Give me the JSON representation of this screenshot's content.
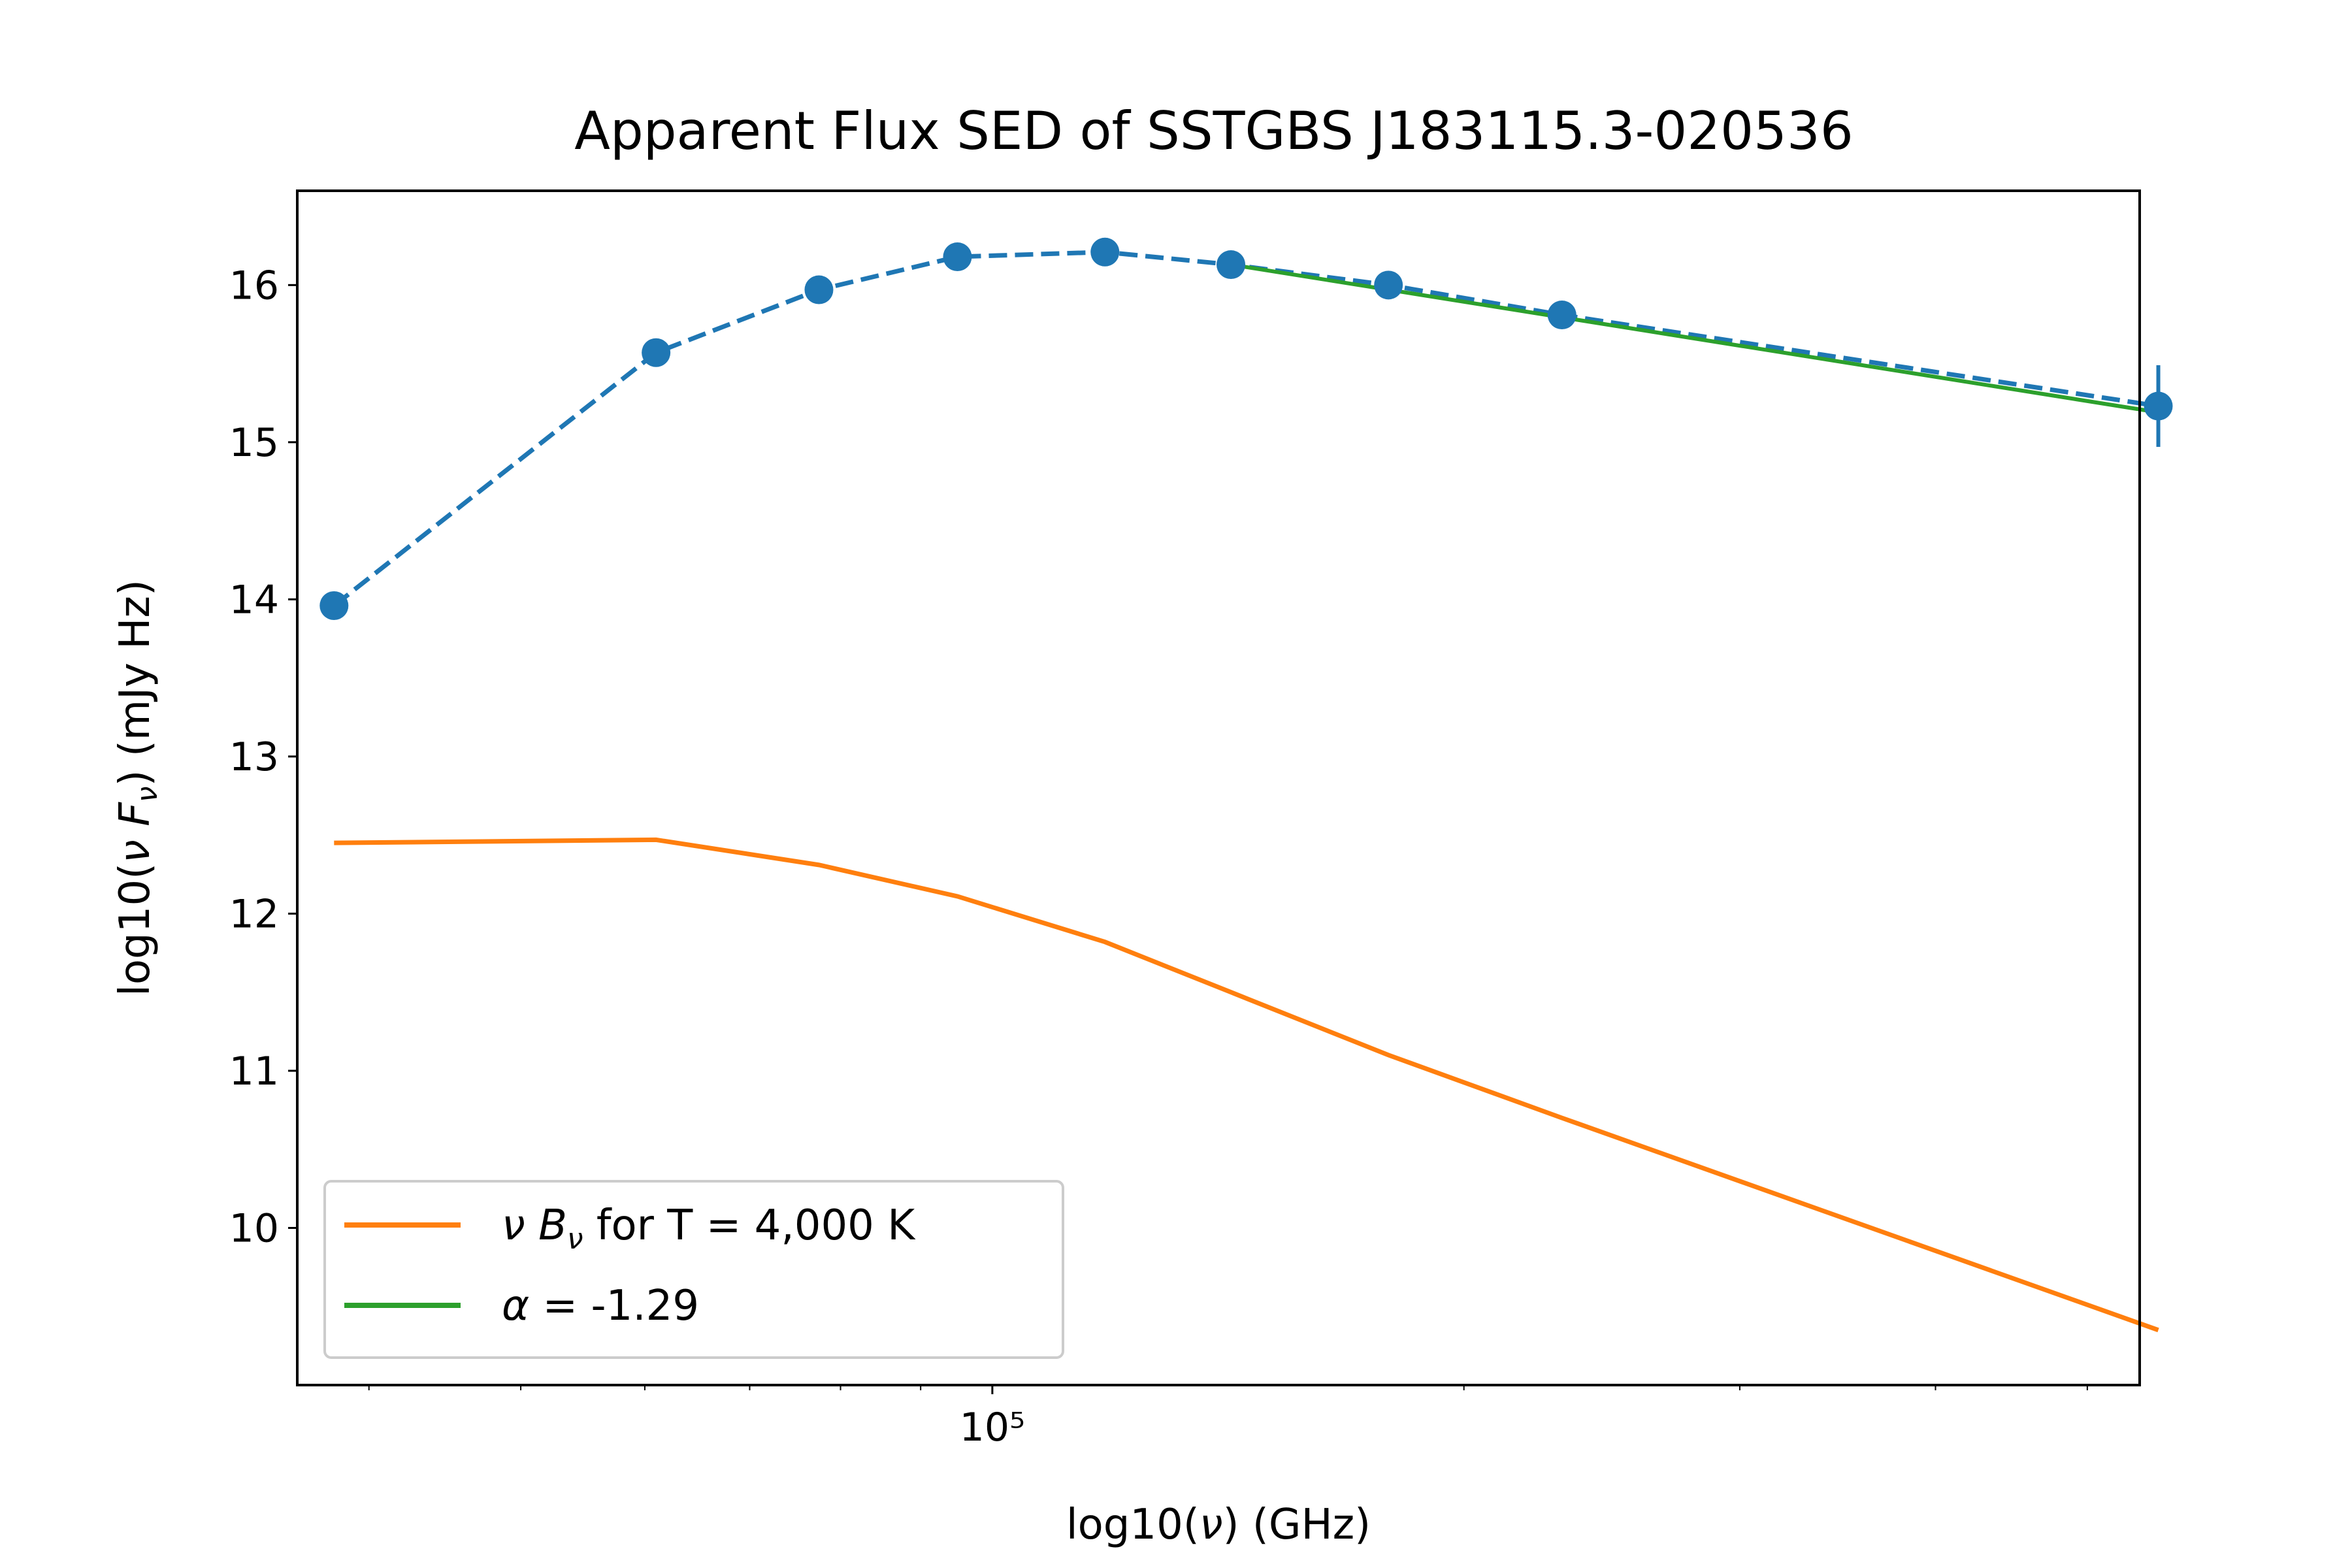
{
  "chart_data": {
    "type": "line",
    "title": "Apparent Flux SED of SSTGBS J183115.3-020536",
    "xlabel": "log10(ν) (GHz)",
    "ylabel": "log10(ν F_ν) (mJy Hz)",
    "x_scale": "log",
    "xlim": [
      36000,
      540000
    ],
    "ylim": [
      9.0,
      16.6
    ],
    "x_tick_major": {
      "value": 100000,
      "label": "10⁵"
    },
    "x_tick_minor": [
      40000,
      50000,
      60000,
      70000,
      80000,
      90000,
      200000,
      300000,
      400000,
      500000
    ],
    "y_ticks": [
      10,
      11,
      12,
      13,
      14,
      15,
      16
    ],
    "y_tick_labels": [
      "10",
      "11",
      "12",
      "13",
      "14",
      "15",
      "16"
    ],
    "grid": false,
    "legend_position": "lower-left",
    "series": [
      {
        "style": "dashed line with circle markers",
        "color": "#1f77b4",
        "x": [
          38000,
          61000,
          77500,
          95000,
          118000,
          142000,
          179000,
          231000,
          555000
        ],
        "y": [
          13.96,
          15.57,
          15.97,
          16.18,
          16.21,
          16.13,
          16.0,
          15.81,
          15.23
        ],
        "yerr": [
          0,
          0,
          0,
          0,
          0,
          0,
          0,
          0,
          0.26
        ]
      },
      {
        "name": "ν B_ν for T = 4,000 K",
        "color": "#ff7f0e",
        "x": [
          38000,
          61000,
          77500,
          95000,
          118000,
          142000,
          179000,
          231000,
          555000
        ],
        "y": [
          12.45,
          12.47,
          12.31,
          12.11,
          11.82,
          11.5,
          11.1,
          10.7,
          9.35
        ]
      },
      {
        "name": "α = -1.29",
        "color": "#2ca02c",
        "x": [
          142000,
          555000
        ],
        "y": [
          16.13,
          15.19
        ]
      }
    ],
    "legend": [
      {
        "label_symbol": "ν B",
        "label_sub": "ν",
        "label_rest": " for T = 4,000 K",
        "color": "#ff7f0e"
      },
      {
        "label_symbol": "α",
        "label_sub": "",
        "label_rest": " = -1.29",
        "color": "#2ca02c"
      }
    ]
  }
}
